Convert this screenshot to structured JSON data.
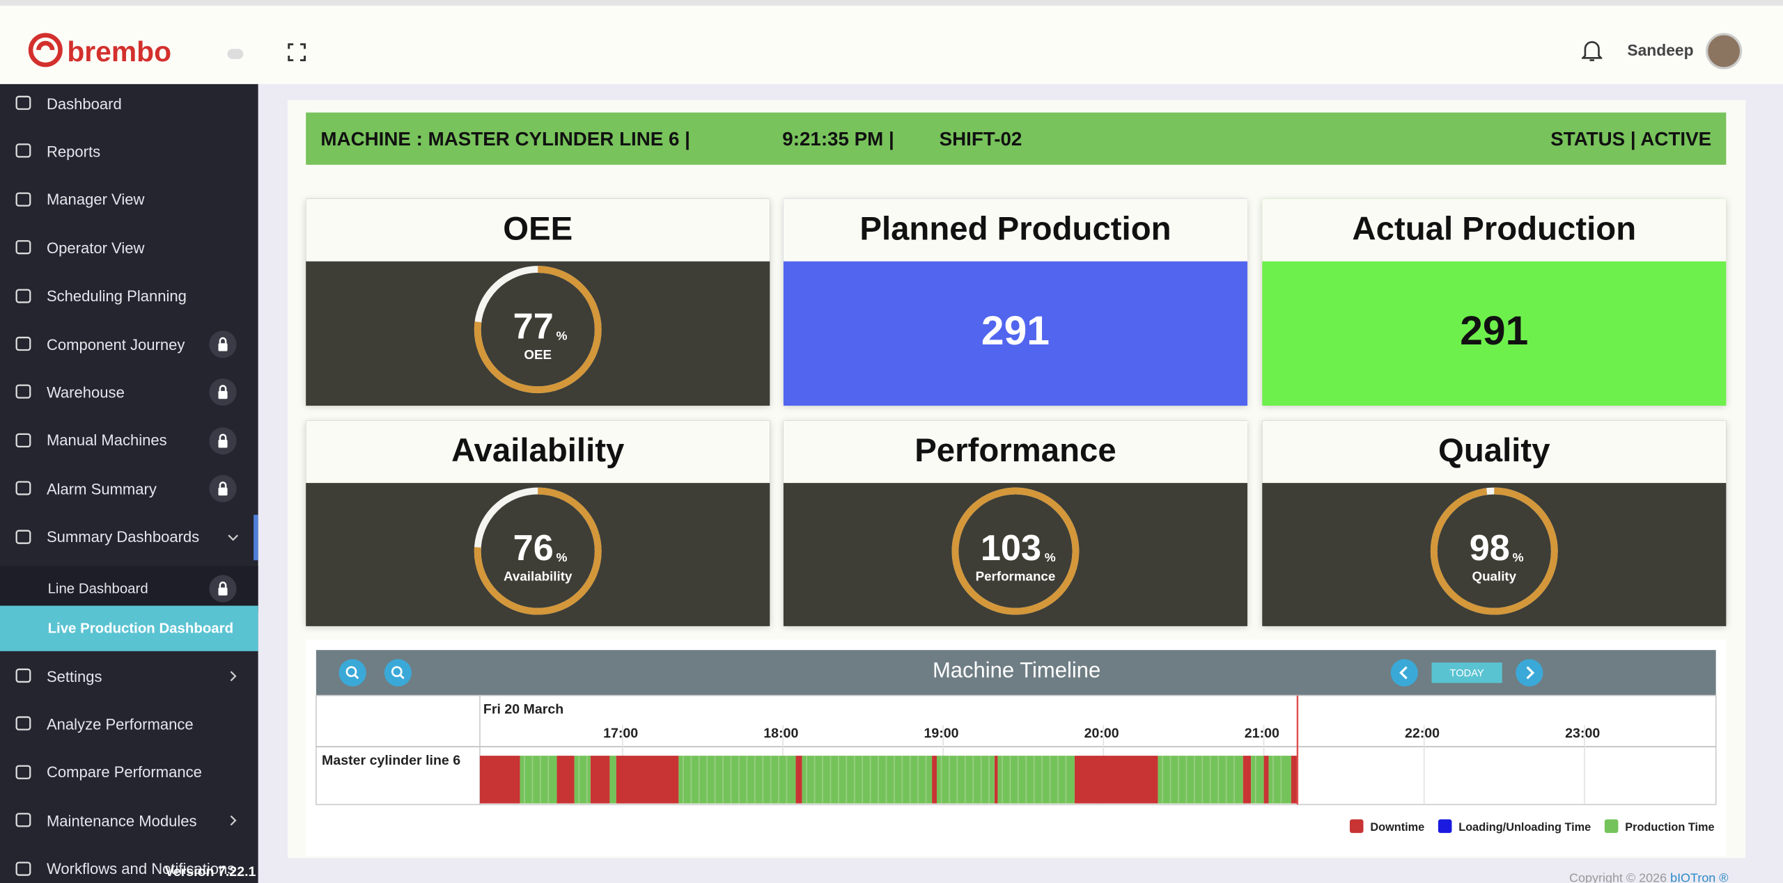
{
  "header": {
    "logo": "brembo",
    "user": "Sandeep"
  },
  "sidebar": {
    "items": [
      {
        "label": "Dashboard"
      },
      {
        "label": "Reports"
      },
      {
        "label": "Manager View"
      },
      {
        "label": "Operator View"
      },
      {
        "label": "Scheduling Planning"
      },
      {
        "label": "Component Journey",
        "locked": true
      },
      {
        "label": "Warehouse",
        "locked": true
      },
      {
        "label": "Manual Machines",
        "locked": true
      },
      {
        "label": "Alarm Summary",
        "locked": true
      },
      {
        "label": "Summary Dashboards",
        "expanded": true,
        "children": [
          {
            "label": "Line Dashboard",
            "locked": true
          },
          {
            "label": "Live Production Dashboard",
            "active": true
          }
        ]
      },
      {
        "label": "Settings",
        "expanded": false
      },
      {
        "label": "Analyze Performance"
      },
      {
        "label": "Compare Performance"
      },
      {
        "label": "Maintenance Modules",
        "expanded": false
      },
      {
        "label": "Workflows and Notifications"
      }
    ],
    "version": "Version 7.22.1"
  },
  "machine_bar": {
    "machine": "MACHINE : MASTER CYLINDER LINE 6 |",
    "time": "9:21:35 PM |",
    "shift": "SHIFT-02",
    "status": "STATUS | ACTIVE"
  },
  "cards": [
    {
      "title": "OEE",
      "kind": "gauge",
      "value": 77,
      "unit": "%",
      "label": "OEE"
    },
    {
      "title": "Planned Production",
      "kind": "number",
      "value": 291,
      "color": "#5165ee"
    },
    {
      "title": "Actual Production",
      "kind": "number",
      "value": 291,
      "color": "#6ef04c"
    },
    {
      "title": "Availability",
      "kind": "gauge",
      "value": 76,
      "unit": "%",
      "label": "Availability"
    },
    {
      "title": "Performance",
      "kind": "gauge",
      "value": 103,
      "unit": "%",
      "label": "Performance"
    },
    {
      "title": "Quality",
      "kind": "gauge",
      "value": 98,
      "unit": "%",
      "label": "Quality"
    }
  ],
  "timeline": {
    "title": "Machine Timeline",
    "today": "TODAY",
    "date": "Fri 20 March",
    "row": "Master cylinder line 6",
    "xlim": [
      16.11,
      23.82
    ],
    "xticks": [
      {
        "value": 17,
        "label": "17:00"
      },
      {
        "value": 18,
        "label": "18:00"
      },
      {
        "value": 19,
        "label": "19:00"
      },
      {
        "value": 20,
        "label": "20:00"
      },
      {
        "value": 21,
        "label": "21:00"
      },
      {
        "value": 22,
        "label": "22:00"
      },
      {
        "value": 23,
        "label": "23:00"
      }
    ],
    "now": 21.21,
    "legend": [
      {
        "name": "Downtime",
        "color": "#c83434",
        "segments": [
          [
            16.11,
            16.36
          ],
          [
            16.59,
            16.7
          ],
          [
            16.8,
            16.92
          ],
          [
            16.96,
            17.35
          ],
          [
            18.08,
            18.12
          ],
          [
            18.93,
            18.96
          ],
          [
            19.32,
            19.34
          ],
          [
            19.82,
            20.34
          ],
          [
            20.87,
            20.92
          ],
          [
            21.0,
            21.03
          ],
          [
            21.17,
            21.21
          ]
        ]
      },
      {
        "name": "Loading/Unloading Time",
        "color": "#1a1ae0",
        "segments": []
      },
      {
        "name": "Production Time",
        "color": "#74c35a",
        "segments": [
          [
            16.36,
            16.59
          ],
          [
            16.7,
            16.8
          ],
          [
            16.92,
            16.96
          ],
          [
            17.35,
            18.08
          ],
          [
            18.12,
            18.93
          ],
          [
            18.96,
            19.32
          ],
          [
            19.34,
            19.82
          ],
          [
            20.34,
            20.87
          ],
          [
            20.92,
            21.0
          ],
          [
            21.03,
            21.17
          ]
        ]
      }
    ]
  },
  "footer": {
    "copyright": "Copyright © 2026",
    "brand": "bIOTron ®"
  }
}
